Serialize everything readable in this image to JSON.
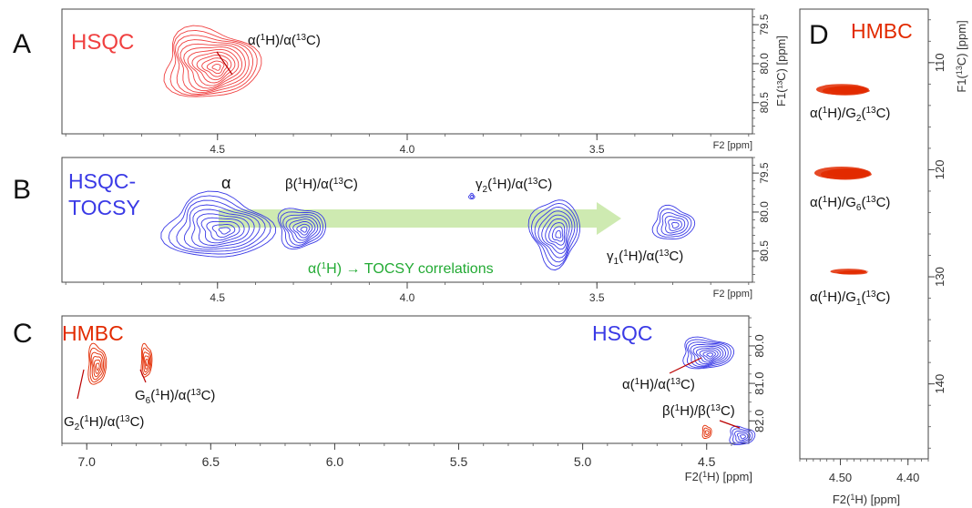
{
  "colors": {
    "hsqc_red": "#f04040",
    "tocsy_blue": "#3a3ae6",
    "hmbc_red": "#e22a00",
    "arrow_green": "#c9e8a8",
    "annot_green": "#22aa33",
    "axis": "#555555"
  },
  "chart_data": [
    {
      "panel": "A",
      "type": "scatter",
      "label": "HSQC",
      "xlabel": "F2 [ppm]",
      "ylabel": "F1(¹³C) [ppm]",
      "xlim": [
        4.91,
        3.09
      ],
      "ylim": [
        79.3,
        80.9
      ],
      "x_ticks": [
        4.5,
        4.0,
        3.5
      ],
      "x_tick_labels": [
        "4.5",
        "4.0",
        "3.5"
      ],
      "y_ticks": [
        79.5,
        80.0,
        80.5
      ],
      "y_tick_labels": [
        "79.5",
        "80.0",
        "80.5"
      ],
      "peaks": [
        {
          "name": "alpha",
          "x": 4.5,
          "y": 80.05,
          "rx": 0.11,
          "ry": 0.45,
          "levels": 12,
          "color": "#f04040"
        }
      ],
      "annotations": [
        {
          "text_html": "α(<tspan font-size='11' dy='-4'>1</tspan><tspan dy='4'>H)/α(</tspan><tspan font-size='11' dy='-4'>13</tspan><tspan dy='4'>C)</tspan>",
          "plain": "α(1H)/α(13C)"
        }
      ]
    },
    {
      "panel": "B",
      "type": "scatter",
      "label_lines": [
        "HSQC-",
        "TOCSY"
      ],
      "xlabel": "F2 [ppm]",
      "xlim": [
        4.91,
        3.09
      ],
      "ylim": [
        79.3,
        80.9
      ],
      "x_ticks": [
        4.5,
        4.0,
        3.5
      ],
      "x_tick_labels": [
        "4.5",
        "4.0",
        "3.5"
      ],
      "y_ticks": [
        79.5,
        80.0,
        80.5
      ],
      "y_tick_labels": [
        "79.5",
        "80.0",
        "80.5"
      ],
      "peaks": [
        {
          "name": "alpha",
          "x": 4.5,
          "y": 80.2,
          "rx": 0.14,
          "ry": 0.55,
          "levels": 10,
          "color": "#3a3ae6"
        },
        {
          "name": "beta",
          "x": 4.28,
          "y": 80.2,
          "rx": 0.07,
          "ry": 0.3,
          "levels": 8,
          "color": "#3a3ae6"
        },
        {
          "name": "gamma2",
          "x": 3.61,
          "y": 80.25,
          "rx": 0.06,
          "ry": 0.45,
          "levels": 9,
          "color": "#3a3ae6"
        },
        {
          "name": "gamma1",
          "x": 3.3,
          "y": 80.15,
          "rx": 0.05,
          "ry": 0.3,
          "levels": 6,
          "color": "#3a3ae6"
        },
        {
          "name": "small",
          "x": 3.83,
          "y": 79.8,
          "rx": 0.005,
          "ry": 0.04,
          "levels": 2,
          "color": "#3a3ae6"
        }
      ],
      "annotations": [
        {
          "plain": "α"
        },
        {
          "plain": "β(1H)/α(13C)"
        },
        {
          "plain": "γ2(1H)/α(13C)"
        },
        {
          "plain": "γ1(1H)/α(13C)"
        },
        {
          "plain": "α(1H) → TOCSY correlations"
        }
      ]
    },
    {
      "panel": "C",
      "type": "scatter",
      "xlabel": "F2(1H) [ppm]",
      "xlim": [
        7.1,
        4.33
      ],
      "ylim": [
        79.2,
        82.6
      ],
      "x_ticks": [
        7.0,
        6.5,
        6.0,
        5.5,
        5.0,
        4.5
      ],
      "x_tick_labels": [
        "7.0",
        "6.5",
        "6.0",
        "5.5",
        "5.0",
        "4.5"
      ],
      "y_ticks": [
        80.0,
        81.0,
        82.0
      ],
      "y_tick_labels": [
        "80.0",
        "81.0",
        "82.0"
      ],
      "labels": [
        "HMBC",
        "HSQC"
      ],
      "peaks": [
        {
          "name": "G2",
          "x": 6.96,
          "y": 80.5,
          "series": "HMBC"
        },
        {
          "name": "G6",
          "x": 6.76,
          "y": 80.4,
          "series": "HMBC"
        },
        {
          "name": "alpha",
          "x": 4.5,
          "y": 80.2,
          "series": "HSQC"
        },
        {
          "name": "beta",
          "x": 4.36,
          "y": 82.4,
          "series": "HSQC"
        },
        {
          "name": "hmbc-small",
          "x": 4.5,
          "y": 82.3,
          "series": "HMBC"
        }
      ],
      "annotations": [
        {
          "plain": "G2(1H)/α(13C)"
        },
        {
          "plain": "G6(1H)/α(13C)"
        },
        {
          "plain": "α(1H)/α(13C)"
        },
        {
          "plain": "β(1H)/β(13C)"
        }
      ]
    },
    {
      "panel": "D",
      "type": "scatter",
      "label": "HMBC",
      "xlabel": "F2(1H) [ppm]",
      "ylabel": "F1(13C) [ppm]",
      "xlim": [
        4.56,
        4.37
      ],
      "ylim": [
        105,
        147
      ],
      "x_ticks": [
        4.5,
        4.4
      ],
      "x_tick_labels": [
        "4.50",
        "4.40"
      ],
      "y_ticks": [
        110,
        120,
        130,
        140
      ],
      "y_tick_labels": [
        "110",
        "120",
        "130",
        "140"
      ],
      "peaks": [
        {
          "name": "G2",
          "x": 4.49,
          "y": 112.5
        },
        {
          "name": "G6",
          "x": 4.49,
          "y": 120.3
        },
        {
          "name": "G1",
          "x": 4.48,
          "y": 129.5
        }
      ],
      "annotations": [
        {
          "plain": "α(1H)/G2(13C)"
        },
        {
          "plain": "α(1H)/G6(13C)"
        },
        {
          "plain": "α(1H)/G1(13C)"
        }
      ]
    }
  ],
  "panel_letters": [
    "A",
    "B",
    "C",
    "D"
  ]
}
